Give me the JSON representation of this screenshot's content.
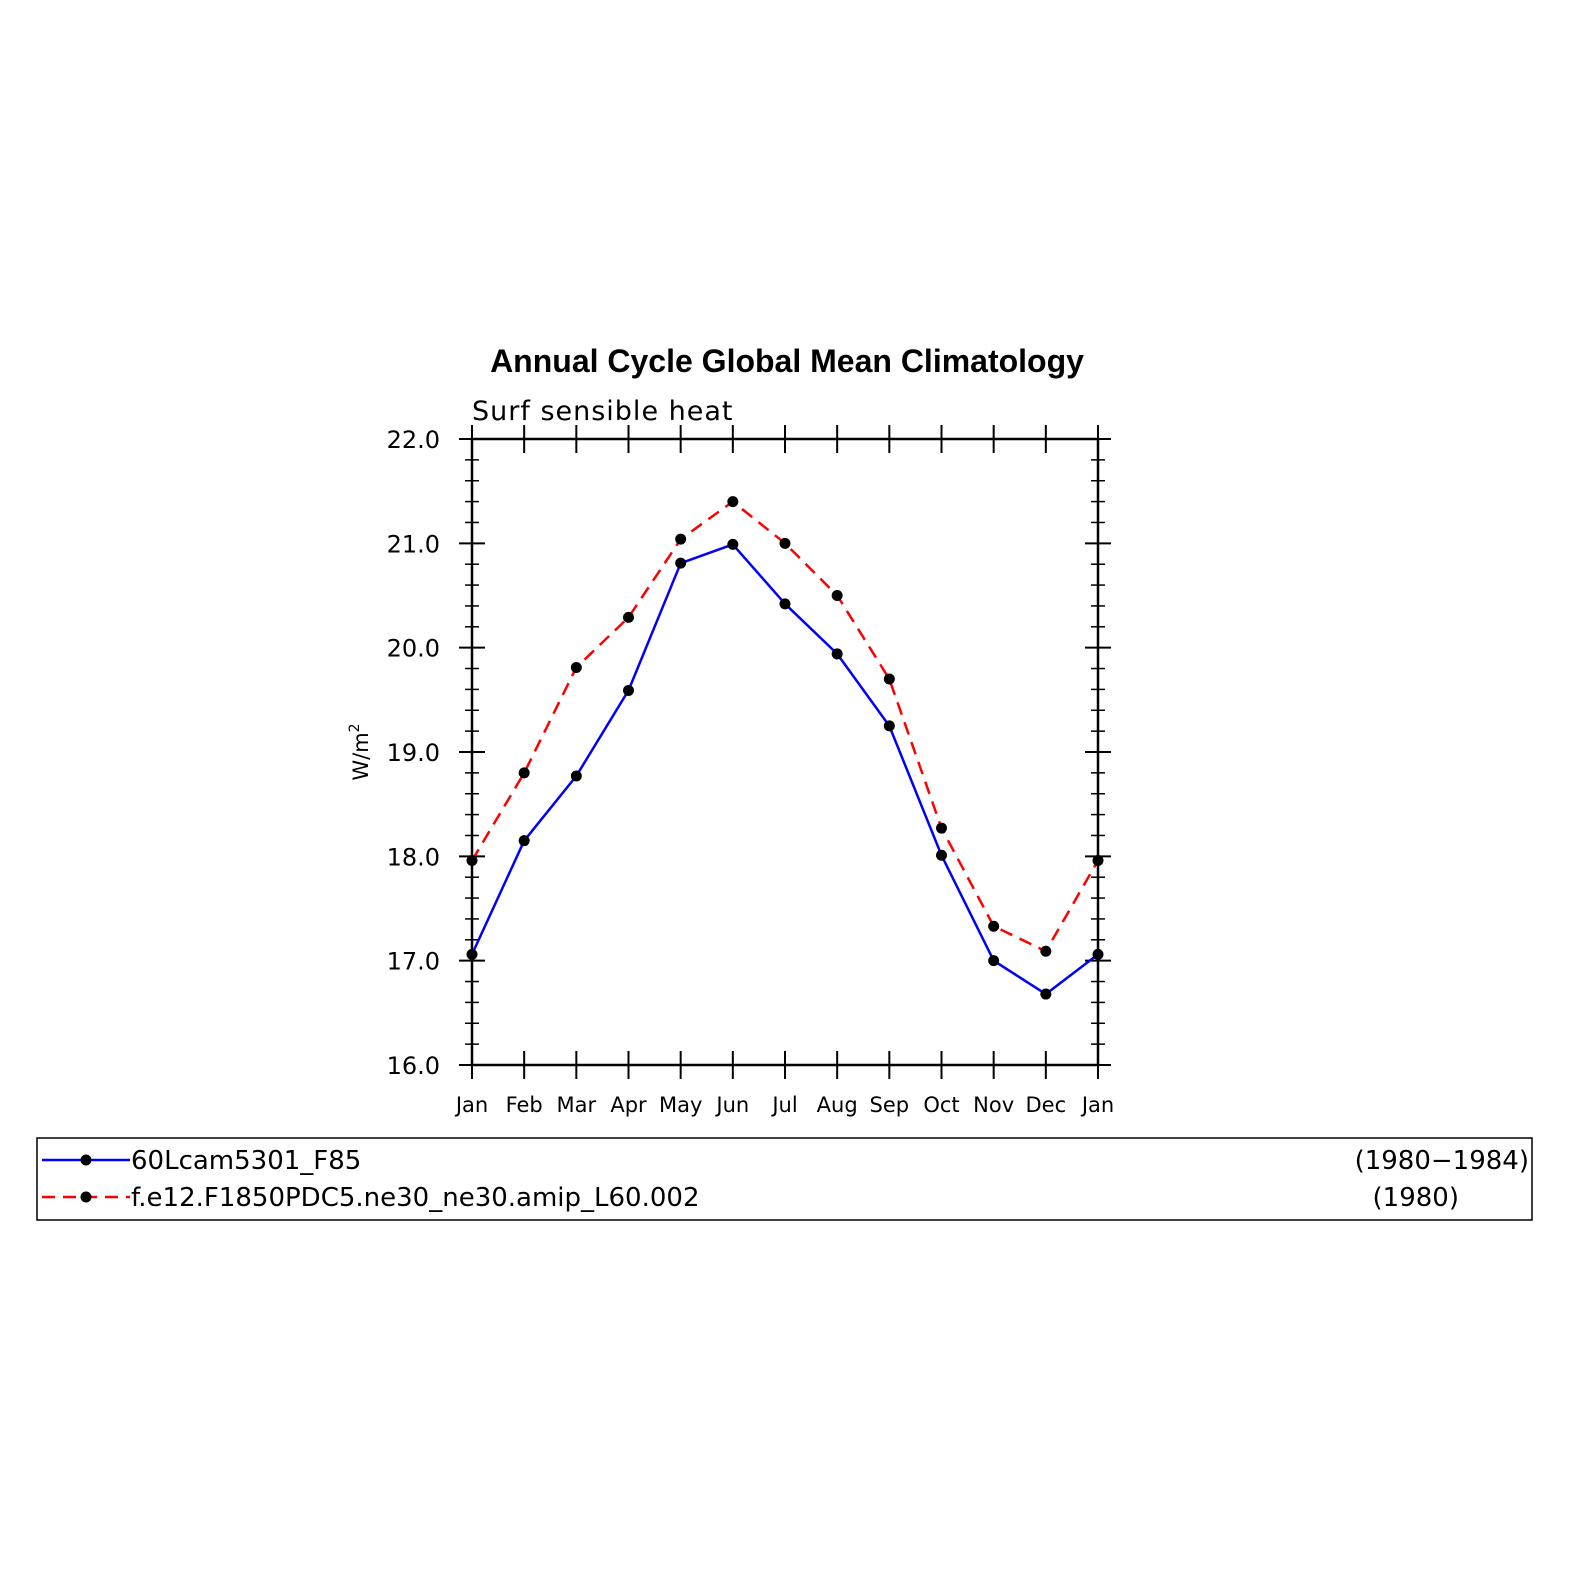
{
  "chart_data": {
    "type": "line",
    "title": "Annual Cycle Global Mean Climatology",
    "subtitle": "Surf sensible heat",
    "ylabel": "W/m",
    "ylabel_superscript": "2",
    "xlabel": "",
    "categories": [
      "Jan",
      "Feb",
      "Mar",
      "Apr",
      "May",
      "Jun",
      "Jul",
      "Aug",
      "Sep",
      "Oct",
      "Nov",
      "Dec",
      "Jan"
    ],
    "ylim": [
      16.0,
      22.0
    ],
    "yticks": [
      "16.0",
      "17.0",
      "18.0",
      "19.0",
      "20.0",
      "21.0",
      "22.0"
    ],
    "grid": false,
    "legend_position": "bottom",
    "series": [
      {
        "name": "60Lcam5301_F85",
        "period": "(1980−1984)",
        "color": "#0000ff",
        "dash": "solid",
        "values": [
          17.06,
          18.15,
          18.77,
          19.59,
          20.81,
          20.99,
          20.42,
          19.94,
          19.25,
          18.01,
          17.0,
          16.68,
          17.06
        ]
      },
      {
        "name": "f.e12.F1850PDC5.ne30_ne30.amip_L60.002",
        "period": "(1980)",
        "color": "#ff0000",
        "dash": "dashed",
        "values": [
          17.96,
          18.8,
          19.81,
          20.29,
          21.04,
          21.4,
          21.0,
          20.5,
          19.7,
          18.27,
          17.33,
          17.09,
          17.96
        ]
      }
    ]
  }
}
